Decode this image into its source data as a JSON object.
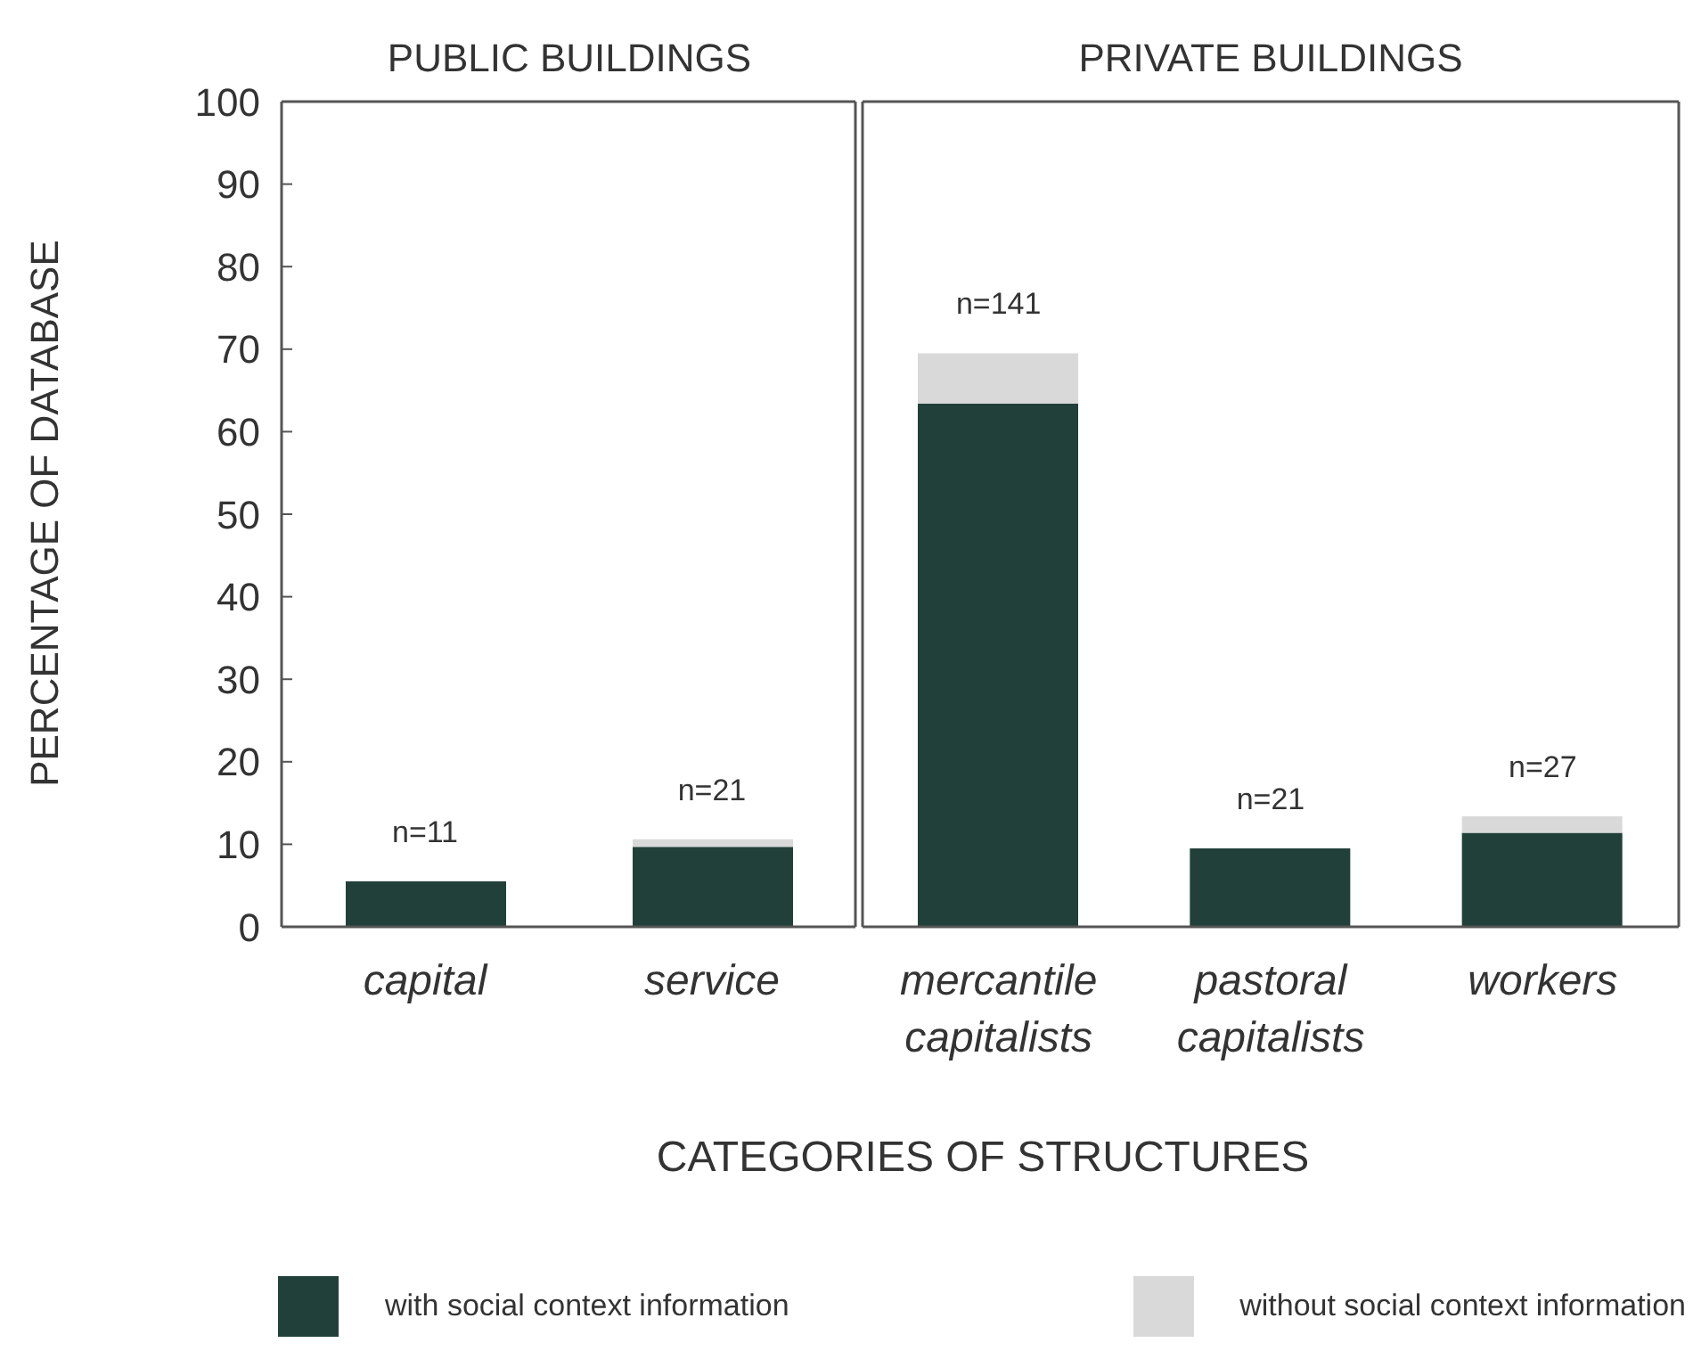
{
  "chart_data": [
    {
      "type": "bar",
      "title": "PUBLIC BUILDINGS",
      "ylabel": "PERCENTAGE OF DATABASE",
      "xlabel": "CATEGORIES OF STRUCTURES",
      "categories": [
        "capital",
        "service"
      ],
      "stacked": true,
      "ylim": [
        0,
        100
      ],
      "yticks": [
        0,
        10,
        20,
        30,
        40,
        50,
        60,
        70,
        80,
        90,
        100
      ],
      "legend": "bottom",
      "series": [
        {
          "name": "with social context information",
          "color": "#21403a",
          "values": [
            5.5,
            9.7
          ]
        },
        {
          "name": "without social context information",
          "color": "#d9d9d9",
          "values": [
            0,
            0.9
          ]
        }
      ],
      "annotations": [
        {
          "text": "n=11",
          "x": "capital",
          "y": 5.5
        },
        {
          "text": "n=21",
          "x": "service",
          "y": 10.6
        }
      ]
    },
    {
      "type": "bar",
      "title": "PRIVATE BUILDINGS",
      "categories": [
        "mercantile capitalists",
        "pastoral capitalists",
        "workers"
      ],
      "stacked": true,
      "ylim": [
        0,
        100
      ],
      "yticks": [
        0,
        10,
        20,
        30,
        40,
        50,
        60,
        70,
        80,
        90,
        100
      ],
      "tick_labels": "x",
      "series": [
        {
          "color": "#21403a",
          "values": [
            63.4,
            9.5,
            11.4
          ]
        },
        {
          "color": "#d9d9d9",
          "values": [
            6.1,
            0,
            2.0
          ]
        }
      ],
      "annotations": [
        {
          "text": "n=141",
          "x": "mercantile capitalists",
          "y": 69.5
        },
        {
          "text": "n=21",
          "x": "pastoral capitalists",
          "y": 9.5
        },
        {
          "text": "n=27",
          "x": "workers",
          "y": 13.4
        }
      ]
    }
  ]
}
